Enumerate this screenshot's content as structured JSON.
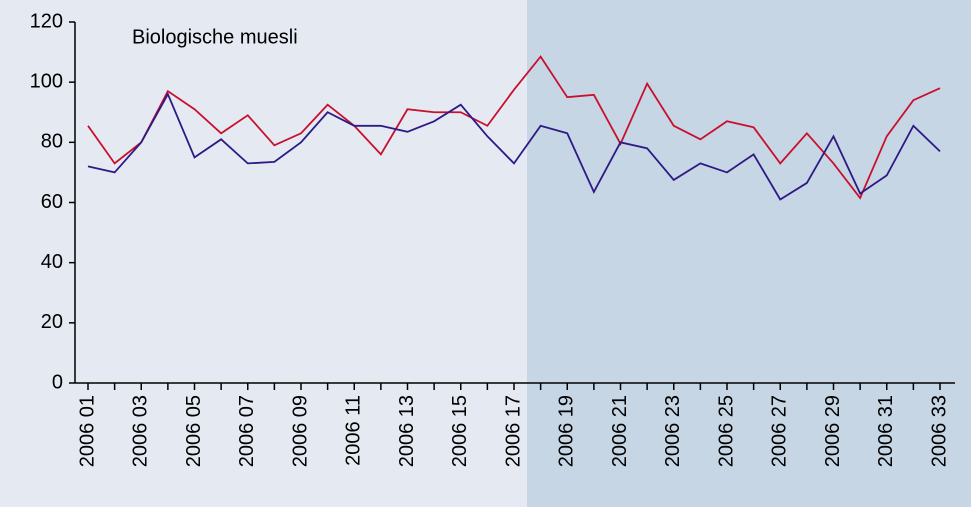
{
  "chart_data": {
    "type": "line",
    "title": "Biologische muesli",
    "categories": [
      "2006 01",
      null,
      "2006 03",
      null,
      "2006 05",
      null,
      "2006 07",
      null,
      "2006 09",
      null,
      "2006 11",
      null,
      "2006 13",
      null,
      "2006 15",
      null,
      "2006 17",
      null,
      "2006 19",
      null,
      "2006 21",
      null,
      "2006 23",
      null,
      "2006 25",
      null,
      "2006 27",
      null,
      "2006 29",
      null,
      "2006 31",
      null,
      "2006 33"
    ],
    "series": [
      {
        "color": "#c8102e",
        "values": [
          85.5,
          73,
          80,
          97,
          91,
          83,
          89,
          79,
          83,
          92.5,
          85.5,
          76,
          91,
          90,
          90,
          85.5,
          97.5,
          108.5,
          95,
          95.8,
          79.5,
          99.5,
          85.5,
          81,
          87,
          85,
          73,
          83,
          73,
          61.5,
          82,
          94,
          98
        ]
      },
      {
        "color": "#2e1a87",
        "values": [
          72,
          70,
          80,
          96,
          75,
          81,
          73,
          73.5,
          80,
          90,
          85.5,
          85.5,
          83.5,
          87,
          92.5,
          82,
          73,
          85.5,
          83,
          63.5,
          80,
          78,
          67.5,
          73,
          70,
          76,
          61,
          66.5,
          82,
          63,
          69,
          85.5,
          77
        ]
      }
    ],
    "ylim": [
      0,
      120
    ],
    "yticks": [
      0,
      20,
      40,
      60,
      80,
      100,
      120
    ]
  }
}
